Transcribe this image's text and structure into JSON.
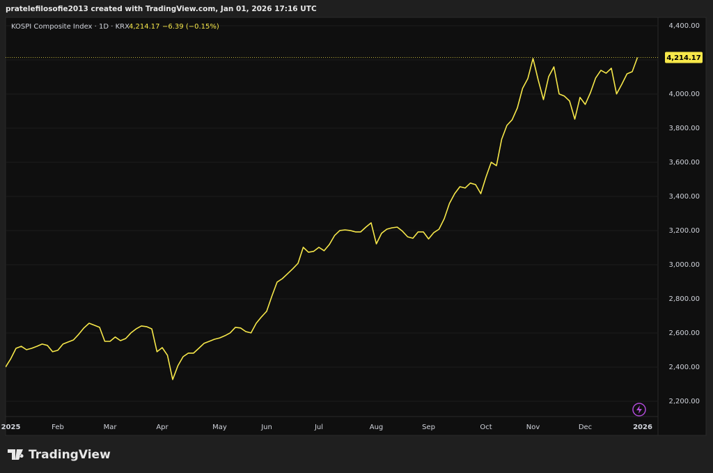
{
  "caption": "pratelefilosofie2013 created with TradingView.com, Jan 01, 2026 17:16 UTC",
  "brand": "TradingView",
  "chart_data": {
    "type": "line",
    "title": "KOSPI Composite Index · 1D · KRX",
    "last_price_label": "4,214.17",
    "change": "−6.39 (−0.15%)",
    "color": "#f7e84a",
    "categories": [
      null,
      "2025",
      null,
      null,
      null,
      null,
      null,
      null,
      null,
      null,
      "Feb",
      null,
      null,
      null,
      null,
      null,
      null,
      null,
      null,
      null,
      "Mar",
      null,
      null,
      null,
      null,
      null,
      null,
      null,
      null,
      null,
      "Apr",
      null,
      null,
      null,
      null,
      null,
      null,
      null,
      null,
      null,
      null,
      "May",
      null,
      null,
      null,
      null,
      null,
      null,
      null,
      null,
      "Jun",
      null,
      null,
      null,
      null,
      null,
      null,
      null,
      null,
      null,
      "Jul",
      null,
      null,
      null,
      null,
      null,
      null,
      null,
      null,
      null,
      null,
      "Aug",
      null,
      null,
      null,
      null,
      null,
      null,
      null,
      null,
      null,
      "Sep",
      null,
      null,
      null,
      null,
      null,
      null,
      null,
      null,
      null,
      null,
      "Oct",
      null,
      null,
      null,
      null,
      null,
      null,
      null,
      null,
      "Nov",
      null,
      null,
      null,
      null,
      null,
      null,
      null,
      null,
      null,
      "Dec",
      null,
      null,
      null,
      null,
      null,
      null,
      null,
      null,
      null,
      null,
      "2026"
    ],
    "values": [
      2400,
      2449,
      2510,
      2522,
      2502,
      2510,
      2522,
      2535,
      2527,
      2490,
      2498,
      2535,
      2547,
      2559,
      2592,
      2629,
      2657,
      2645,
      2633,
      2551,
      2551,
      2576,
      2555,
      2567,
      2600,
      2624,
      2641,
      2637,
      2624,
      2490,
      2514,
      2469,
      2327,
      2408,
      2461,
      2482,
      2482,
      2510,
      2539,
      2551,
      2563,
      2571,
      2584,
      2600,
      2633,
      2629,
      2608,
      2600,
      2657,
      2694,
      2727,
      2816,
      2898,
      2918,
      2947,
      2976,
      3008,
      3102,
      3073,
      3078,
      3102,
      3082,
      3118,
      3171,
      3200,
      3204,
      3200,
      3192,
      3192,
      3220,
      3245,
      3122,
      3184,
      3208,
      3216,
      3220,
      3196,
      3163,
      3155,
      3192,
      3192,
      3151,
      3188,
      3208,
      3269,
      3359,
      3416,
      3457,
      3449,
      3478,
      3469,
      3416,
      3514,
      3600,
      3580,
      3735,
      3816,
      3849,
      3918,
      4033,
      4090,
      4208,
      4082,
      3967,
      4102,
      4159,
      4000,
      3988,
      3959,
      3853,
      3980,
      3939,
      4008,
      4094,
      4139,
      4122,
      4151,
      4000,
      4057,
      4118,
      4131,
      4214.17,
      null
    ],
    "ylim": [
      2110,
      4461
    ],
    "yticks": [
      {
        "value": 2200,
        "label": "2,200.00"
      },
      {
        "value": 2400,
        "label": "2,400.00"
      },
      {
        "value": 2600,
        "label": "2,600.00"
      },
      {
        "value": 2800,
        "label": "2,800.00"
      },
      {
        "value": 3000,
        "label": "3,000.00"
      },
      {
        "value": 3200,
        "label": "3,200.00"
      },
      {
        "value": 3400,
        "label": "3,400.00"
      },
      {
        "value": 3600,
        "label": "3,600.00"
      },
      {
        "value": 3800,
        "label": "3,800.00"
      },
      {
        "value": 4000,
        "label": "4,000.00"
      },
      {
        "value": 4200,
        "label": "4,200.00"
      },
      {
        "value": 4400,
        "label": "4,400.00"
      }
    ],
    "grid": true
  }
}
